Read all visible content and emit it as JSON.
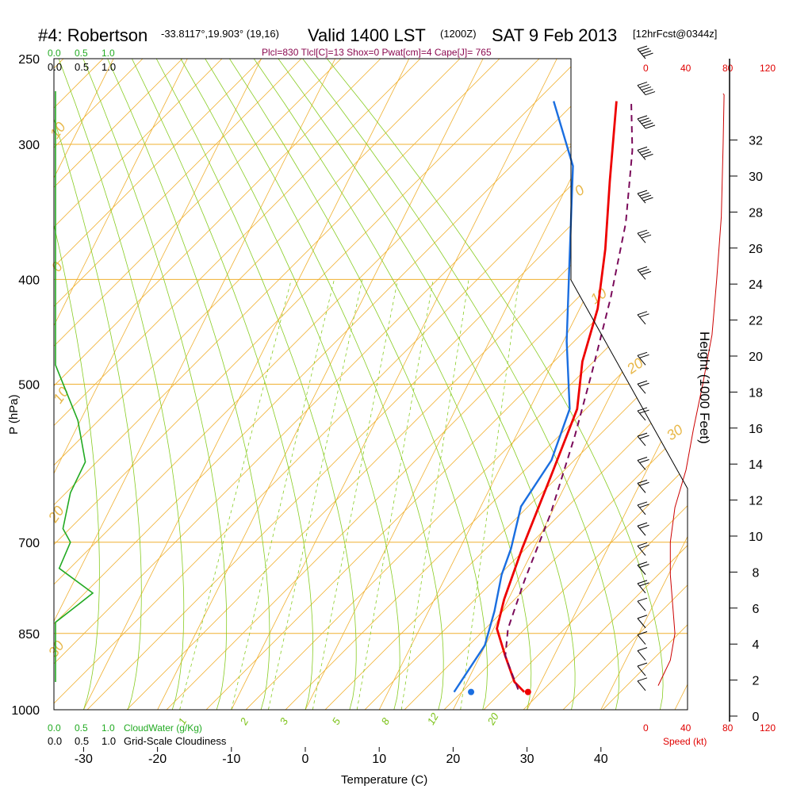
{
  "header": {
    "station": "#4: Robertson",
    "coords": "-33.8117°,19.903° (19,16)",
    "valid": "Valid 1400 LST",
    "utc": "(1200Z)",
    "date": "SAT 9 Feb 2013",
    "forecast": "[12hrFcst@0344z]",
    "indices": "Plcl=830 Tlcl[C]=13 Shox=0 Pwat[cm]=4 Cape[J]= 765"
  },
  "colors": {
    "isobar": "#f0b030",
    "dry_adiabat": "#f0b030",
    "moist_adiabat": "#88cc22",
    "mixing_ratio": "#88cc22",
    "temperature": "#ee0000",
    "dewpoint": "#1a6ee0",
    "parcel": "#7a0a5a",
    "cloud": "#22aa22",
    "wind": "#000000",
    "speed": "#cc0000"
  },
  "cloud_scale": {
    "top_green": [
      "0.0",
      "0.5",
      "1.0"
    ],
    "top_black": [
      "0.0",
      "0.5",
      "1.0"
    ],
    "bottom_green": [
      "0.0",
      "0.5",
      "1.0"
    ],
    "bottom_green_label": "CloudWater (g/Kg)",
    "bottom_black": [
      "0.0",
      "0.5",
      "1.0"
    ],
    "bottom_black_label": "Grid-Scale Cloudiness"
  },
  "speed_scale": {
    "top": [
      "0",
      "40",
      "80",
      "120"
    ],
    "bottom": [
      "0",
      "40",
      "80",
      "120"
    ],
    "label": "Speed (kt)"
  },
  "chart_data": {
    "type": "line",
    "subtype": "skew-t log-p sounding",
    "xlabel": "Temperature (C)",
    "ylabel": "P (hPa)",
    "y2label": "Height (1000 Feet)",
    "x_ticks": [
      -30,
      -20,
      -10,
      0,
      10,
      20,
      30,
      40
    ],
    "p_ticks": [
      250,
      300,
      400,
      500,
      700,
      850,
      1000
    ],
    "height_ticks": [
      0,
      2,
      4,
      6,
      8,
      10,
      12,
      14,
      16,
      18,
      20,
      22,
      24,
      26,
      28,
      30,
      32
    ],
    "dry_adiabat_labels": [
      "10",
      "0",
      "10",
      "20",
      "30",
      "0",
      "10",
      "20",
      "30"
    ],
    "mixing_ratio_labels": [
      "1",
      "2",
      "3",
      "5",
      "8",
      "12",
      "20"
    ],
    "series": [
      {
        "name": "Temperature",
        "points": [
          {
            "x": 28.0,
            "p": 950
          },
          {
            "x": 26.0,
            "p": 930
          },
          {
            "x": 23.0,
            "p": 880
          },
          {
            "x": 20.0,
            "p": 830
          },
          {
            "x": 19.0,
            "p": 780
          },
          {
            "x": 18.0,
            "p": 700
          },
          {
            "x": 17.0,
            "p": 600
          },
          {
            "x": 16.0,
            "p": 520
          },
          {
            "x": 13.5,
            "p": 470
          },
          {
            "x": 12.0,
            "p": 420
          },
          {
            "x": 9.0,
            "p": 370
          },
          {
            "x": 5.0,
            "p": 320
          },
          {
            "x": 0.5,
            "p": 270
          }
        ]
      },
      {
        "name": "Dewpoint",
        "points": [
          {
            "x": 18.5,
            "p": 950
          },
          {
            "x": 19.5,
            "p": 860
          },
          {
            "x": 18.5,
            "p": 800
          },
          {
            "x": 17.0,
            "p": 740
          },
          {
            "x": 16.5,
            "p": 700
          },
          {
            "x": 15.0,
            "p": 640
          },
          {
            "x": 16.0,
            "p": 580
          },
          {
            "x": 15.0,
            "p": 520
          },
          {
            "x": 10.0,
            "p": 450
          },
          {
            "x": 5.0,
            "p": 380
          },
          {
            "x": -1.0,
            "p": 310
          },
          {
            "x": -8.0,
            "p": 270
          }
        ]
      },
      {
        "name": "Parcel",
        "points": [
          {
            "x": 27.0,
            "p": 945
          },
          {
            "x": 23.0,
            "p": 880
          },
          {
            "x": 21.5,
            "p": 830
          },
          {
            "x": 20.5,
            "p": 750
          },
          {
            "x": 19.5,
            "p": 650
          },
          {
            "x": 17.5,
            "p": 550
          },
          {
            "x": 15.5,
            "p": 480
          },
          {
            "x": 13.0,
            "p": 410
          },
          {
            "x": 10.0,
            "p": 350
          },
          {
            "x": 6.0,
            "p": 300
          },
          {
            "x": 2.5,
            "p": 270
          }
        ]
      },
      {
        "name": "Surface markers",
        "points": [
          {
            "label": "temperature",
            "x": 28.5,
            "p": 950
          },
          {
            "label": "dewpoint",
            "x": 20.8,
            "p": 950
          }
        ]
      }
    ],
    "cloud_water": {
      "units": "g/Kg",
      "points": [
        {
          "v": 0.0,
          "p": 480
        },
        {
          "v": 0.3,
          "p": 540
        },
        {
          "v": 0.4,
          "p": 590
        },
        {
          "v": 0.2,
          "p": 630
        },
        {
          "v": 0.1,
          "p": 680
        },
        {
          "v": 0.2,
          "p": 700
        },
        {
          "v": 0.05,
          "p": 740
        },
        {
          "v": 0.5,
          "p": 780
        },
        {
          "v": 0.3,
          "p": 800
        },
        {
          "v": 0.0,
          "p": 830
        }
      ]
    },
    "wind_speed_profile": {
      "units": "kt",
      "points": [
        {
          "v": 12,
          "p": 950
        },
        {
          "v": 25,
          "p": 900
        },
        {
          "v": 30,
          "p": 850
        },
        {
          "v": 25,
          "p": 750
        },
        {
          "v": 25,
          "p": 700
        },
        {
          "v": 30,
          "p": 650
        },
        {
          "v": 42,
          "p": 600
        },
        {
          "v": 50,
          "p": 550
        },
        {
          "v": 60,
          "p": 500
        },
        {
          "v": 70,
          "p": 450
        },
        {
          "v": 75,
          "p": 400
        },
        {
          "v": 80,
          "p": 350
        },
        {
          "v": 82,
          "p": 300
        },
        {
          "v": 83,
          "p": 270
        }
      ]
    },
    "wind_barbs": [
      {
        "p": 250,
        "speed": 40,
        "dir": 300
      },
      {
        "p": 270,
        "speed": 45,
        "dir": 300
      },
      {
        "p": 290,
        "speed": 45,
        "dir": 300
      },
      {
        "p": 310,
        "speed": 40,
        "dir": 300
      },
      {
        "p": 340,
        "speed": 35,
        "dir": 300
      },
      {
        "p": 370,
        "speed": 30,
        "dir": 300
      },
      {
        "p": 400,
        "speed": 25,
        "dir": 300
      },
      {
        "p": 440,
        "speed": 20,
        "dir": 300
      },
      {
        "p": 480,
        "speed": 20,
        "dir": 300
      },
      {
        "p": 510,
        "speed": 20,
        "dir": 300
      },
      {
        "p": 540,
        "speed": 20,
        "dir": 300
      },
      {
        "p": 570,
        "speed": 20,
        "dir": 300
      },
      {
        "p": 600,
        "speed": 20,
        "dir": 300
      },
      {
        "p": 630,
        "speed": 20,
        "dir": 300
      },
      {
        "p": 660,
        "speed": 20,
        "dir": 300
      },
      {
        "p": 690,
        "speed": 20,
        "dir": 300
      },
      {
        "p": 720,
        "speed": 15,
        "dir": 300
      },
      {
        "p": 750,
        "speed": 15,
        "dir": 300
      },
      {
        "p": 780,
        "speed": 15,
        "dir": 300
      },
      {
        "p": 810,
        "speed": 10,
        "dir": 300
      },
      {
        "p": 840,
        "speed": 10,
        "dir": 300
      },
      {
        "p": 870,
        "speed": 10,
        "dir": 300
      },
      {
        "p": 900,
        "speed": 10,
        "dir": 300
      },
      {
        "p": 930,
        "speed": 10,
        "dir": 300
      },
      {
        "p": 960,
        "speed": 10,
        "dir": 300
      }
    ]
  }
}
